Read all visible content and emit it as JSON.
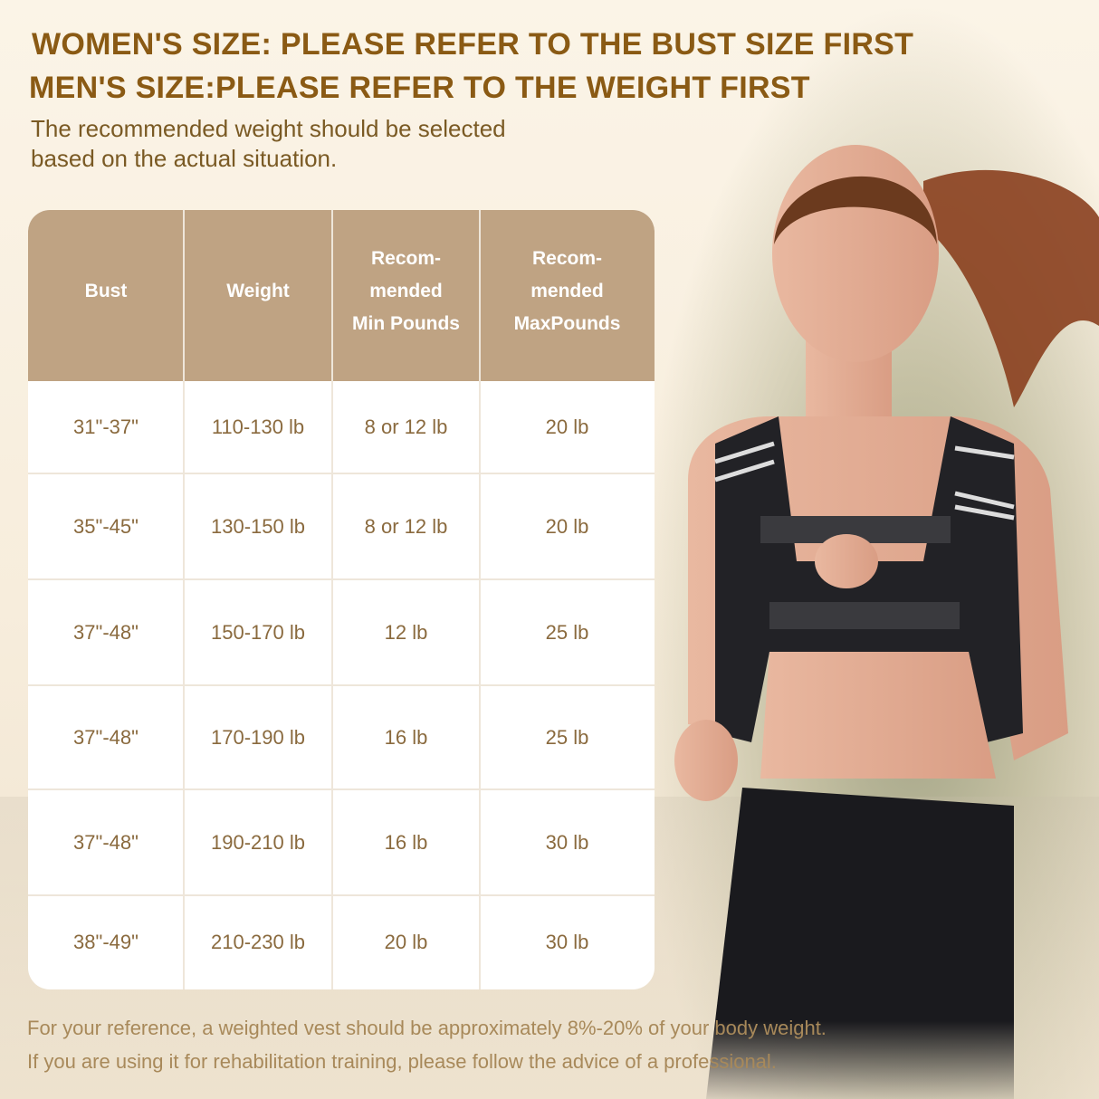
{
  "heading": {
    "line1": "WOMEN'S SIZE: PLEASE REFER TO THE BUST SIZE FIRST",
    "line2": "MEN'S SIZE:PLEASE REFER TO THE WEIGHT FIRST"
  },
  "subtitle": {
    "line1": "The recommended weight should be selected",
    "line2": "based on the actual situation."
  },
  "table": {
    "headers": [
      [
        "Bust"
      ],
      [
        "Weight"
      ],
      [
        "Recom-",
        "mended",
        "Min Pounds"
      ],
      [
        "Recom-",
        "mended",
        "MaxPounds"
      ]
    ],
    "rows": [
      [
        "31\"-37\"",
        "110-130 lb",
        "8 or 12 lb",
        "20 lb"
      ],
      [
        "35\"-45\"",
        "130-150 lb",
        "8 or 12 lb",
        "20 lb"
      ],
      [
        "37\"-48\"",
        "150-170 lb",
        "12 lb",
        "25 lb"
      ],
      [
        "37\"-48\"",
        "170-190 lb",
        "16 lb",
        "25 lb"
      ],
      [
        "37\"-48\"",
        "190-210 lb",
        "16 lb",
        "30 lb"
      ],
      [
        "38\"-49\"",
        "210-230 lb",
        "20 lb",
        "30 lb"
      ]
    ]
  },
  "footer": {
    "line1": "For your reference, a weighted vest should be approximately 8%-20% of your body weight.",
    "line2": "If you are using it for rehabilitation training, please follow the advice of a professional."
  },
  "colors": {
    "heading": "#8a5a14",
    "header_bg": "#bfa383",
    "cell_text": "#8a6a3e"
  },
  "photo": "woman-running-in-weighted-vest"
}
